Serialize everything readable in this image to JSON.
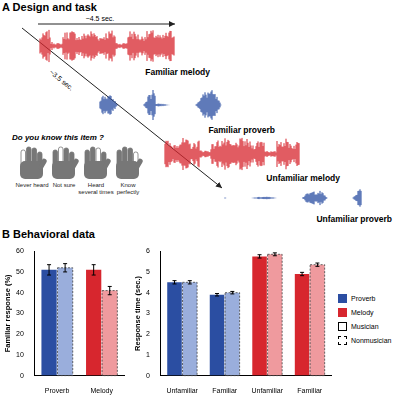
{
  "panel_a": {
    "label": "A",
    "title": "Design and task",
    "durations": [
      "~4.5 sec.",
      "~3.5 sec."
    ],
    "items": [
      {
        "label": "Familiar melody",
        "color": "#d7262e",
        "kind": "melody"
      },
      {
        "label": "Familiar proverb",
        "color": "#2b4ea2",
        "kind": "proverb"
      },
      {
        "label": "Unfamiliar melody",
        "color": "#d7262e",
        "kind": "melody"
      },
      {
        "label": "Unfamiliar proverb",
        "color": "#2b4ea2",
        "kind": "proverb"
      }
    ],
    "question": "Do you know this item ?",
    "responses": [
      "Never heard",
      "Not sure",
      "Heard several times",
      "Know perfectly"
    ]
  },
  "panel_b": {
    "label": "B",
    "title": "Behavioral data",
    "key": [
      {
        "name": "Proverb",
        "color": "#2b4ea2"
      },
      {
        "name": "Melody",
        "color": "#d7262e"
      },
      {
        "name": "Musician",
        "line_style": "solid"
      },
      {
        "name": "Nonmusician",
        "line_style": "dashed"
      }
    ]
  },
  "chart_data": [
    {
      "type": "bar",
      "y_label": "Familiar response (%)",
      "categories": [
        "Proverb",
        "Melody"
      ],
      "ylim": [
        0,
        60
      ],
      "yticks": [
        0,
        10,
        20,
        30,
        40,
        50,
        60
      ],
      "grid": false,
      "series": [
        {
          "name": "Musician",
          "line_style": "solid",
          "colors": [
            "#2b4ea2",
            "#d7262e"
          ],
          "values": [
            51,
            51
          ],
          "errors": [
            2.5,
            2.5
          ]
        },
        {
          "name": "Nonmusician",
          "line_style": "dashed",
          "colors": [
            "#9aaedc",
            "#ef9a9e"
          ],
          "values": [
            52,
            41
          ],
          "errors": [
            2,
            2
          ]
        }
      ]
    },
    {
      "type": "bar",
      "y_label": "Response time (sec.)",
      "categories": [
        "Unfamiliar",
        "Familiar",
        "Unfamiliar",
        "Familiar"
      ],
      "ylim": [
        0,
        6
      ],
      "yticks": [
        0,
        1,
        2,
        3,
        4,
        5,
        6
      ],
      "grid": false,
      "series": [
        {
          "name": "Musician",
          "line_style": "solid",
          "colors": [
            "#2b4ea2",
            "#2b4ea2",
            "#d7262e",
            "#d7262e"
          ],
          "values": [
            4.5,
            3.9,
            5.75,
            4.9
          ],
          "errors": [
            0.08,
            0.06,
            0.08,
            0.08
          ]
        },
        {
          "name": "Nonmusician",
          "line_style": "dashed",
          "colors": [
            "#9aaedc",
            "#9aaedc",
            "#ef9a9e",
            "#ef9a9e"
          ],
          "values": [
            4.5,
            4.0,
            5.85,
            5.35
          ],
          "errors": [
            0.08,
            0.06,
            0.07,
            0.08
          ]
        }
      ]
    }
  ]
}
